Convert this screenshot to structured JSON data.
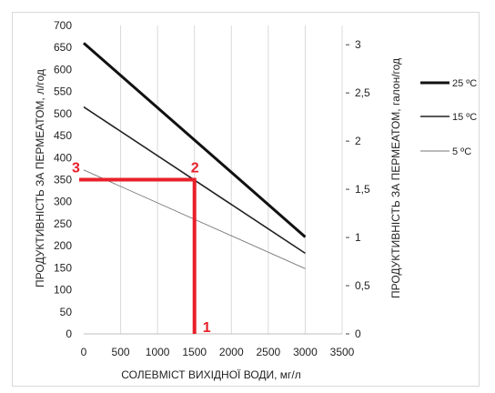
{
  "chart_data": {
    "type": "line",
    "title": "",
    "xlabel": "СОЛЕВМІСТ ВИХІДНОЇ ВОДИ, мг/л",
    "ylabel": "ПРОДУКТИВНІСТЬ ЗА ПЕРМЕАТОМ, л/год",
    "y2label": "ПРОДУКТИВНІСТЬ ЗА ПЕРМЕАТОМ, галон/год",
    "xlim": [
      0,
      3500
    ],
    "ylim": [
      0,
      700
    ],
    "y2lim": [
      0,
      3.2
    ],
    "grid": "vertical",
    "legend_position": "right",
    "x_ticks": [
      "0",
      "500",
      "1000",
      "1500",
      "2000",
      "2500",
      "3000",
      "3500"
    ],
    "y_ticks": [
      "0",
      "50",
      "100",
      "150",
      "200",
      "250",
      "300",
      "350",
      "400",
      "450",
      "500",
      "550",
      "600",
      "650",
      "700"
    ],
    "y2_ticks": [
      "0",
      "0,5",
      "1",
      "1,5",
      "2",
      "2,5",
      "3"
    ],
    "series": [
      {
        "name": "25 ºC",
        "x": [
          0,
          3000
        ],
        "y": [
          660,
          220
        ],
        "color": "#111111"
      },
      {
        "name": "15 ºC",
        "x": [
          0,
          3000
        ],
        "y": [
          515,
          183
        ],
        "color": "#222222"
      },
      {
        "name": "5 ºC",
        "x": [
          0,
          3000
        ],
        "y": [
          372,
          148
        ],
        "color": "#777777"
      }
    ],
    "annotations": [
      {
        "label": "1",
        "x": 1500,
        "y": 0
      },
      {
        "label": "2",
        "x": 1500,
        "y": 350
      },
      {
        "label": "3",
        "x": 0,
        "y": 350
      }
    ],
    "annotation_color": "#e8202a"
  }
}
